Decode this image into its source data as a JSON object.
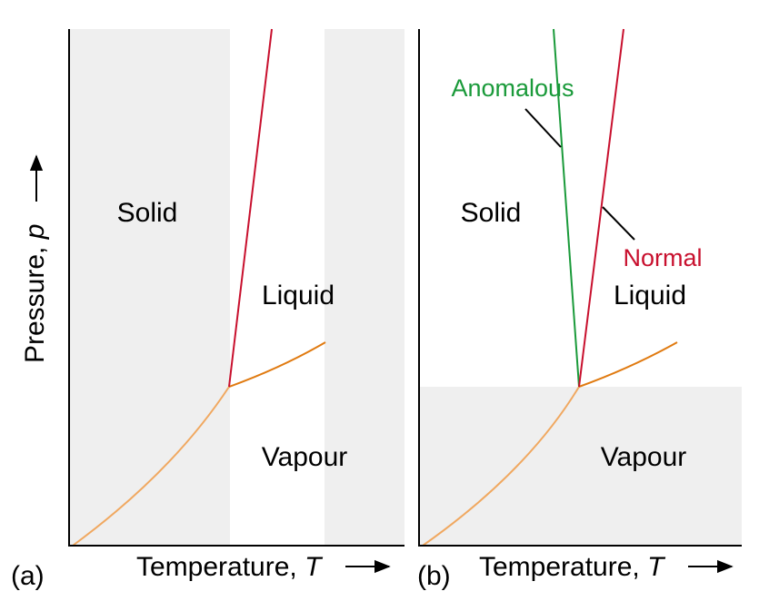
{
  "panel_a": {
    "tag": "(a)",
    "y_axis_label": {
      "text": "Pressure, ",
      "symbol": "p"
    },
    "x_axis_label": {
      "text": "Temperature, ",
      "symbol": "T"
    },
    "regions": {
      "solid": "Solid",
      "liquid": "Liquid",
      "vapour": "Vapour"
    }
  },
  "panel_b": {
    "tag": "(b)",
    "x_axis_label": {
      "text": "Temperature, ",
      "symbol": "T"
    },
    "regions": {
      "solid": "Solid",
      "liquid": "Liquid",
      "vapour": "Vapour"
    },
    "annotations": {
      "anomalous": "Anomalous",
      "normal": "Normal"
    }
  }
}
